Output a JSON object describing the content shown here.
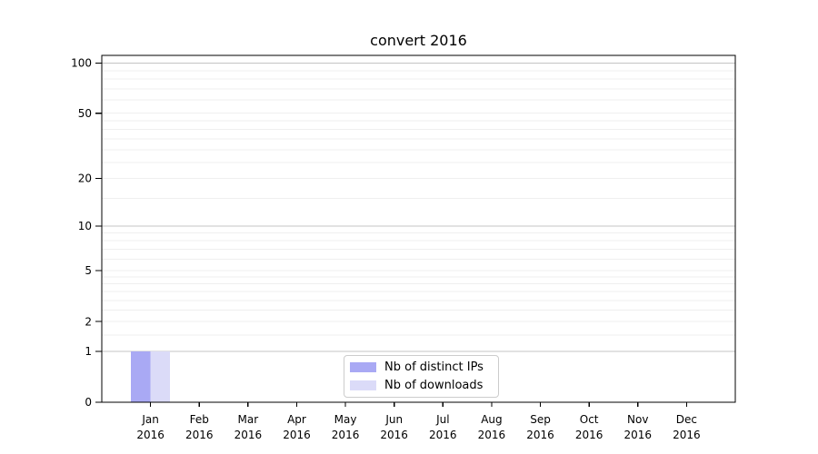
{
  "chart_data": {
    "type": "bar",
    "title": "convert 2016",
    "x_categories": [
      {
        "label": "Jan",
        "sublabel": "2016"
      },
      {
        "label": "Feb",
        "sublabel": "2016"
      },
      {
        "label": "Mar",
        "sublabel": "2016"
      },
      {
        "label": "Apr",
        "sublabel": "2016"
      },
      {
        "label": "May",
        "sublabel": "2016"
      },
      {
        "label": "Jun",
        "sublabel": "2016"
      },
      {
        "label": "Jul",
        "sublabel": "2016"
      },
      {
        "label": "Aug",
        "sublabel": "2016"
      },
      {
        "label": "Sep",
        "sublabel": "2016"
      },
      {
        "label": "Oct",
        "sublabel": "2016"
      },
      {
        "label": "Nov",
        "sublabel": "2016"
      },
      {
        "label": "Dec",
        "sublabel": "2016"
      }
    ],
    "series": [
      {
        "name": "Nb of distinct IPs",
        "color": "#a9a9f4",
        "values": [
          1,
          0,
          0,
          0,
          0,
          0,
          0,
          0,
          0,
          0,
          0,
          0
        ]
      },
      {
        "name": "Nb of downloads",
        "color": "#dbdbf8",
        "values": [
          1,
          0,
          0,
          0,
          0,
          0,
          0,
          0,
          0,
          0,
          0,
          0
        ]
      }
    ],
    "yscale": "log1p",
    "ylim": [
      0,
      111
    ],
    "yticks": [
      {
        "value": 0,
        "label": "0"
      },
      {
        "value": 1,
        "label": "1"
      },
      {
        "value": 2,
        "label": "2"
      },
      {
        "value": 5,
        "label": "5"
      },
      {
        "value": 10,
        "label": "10"
      },
      {
        "value": 20,
        "label": "20"
      },
      {
        "value": 50,
        "label": "50"
      },
      {
        "value": 100,
        "label": "100"
      }
    ],
    "major_gridline_values": [
      1,
      10,
      100
    ],
    "minor_gridline_values": [
      1.5,
      2,
      2.5,
      3,
      3.5,
      4,
      4.5,
      5,
      6,
      7,
      8,
      9,
      15,
      20,
      25,
      30,
      35,
      40,
      45,
      50,
      60,
      70,
      80,
      90
    ],
    "grid": "horizontal",
    "legend_position": "lower center",
    "colors": {
      "major_grid": "#c4c4c4",
      "minor_grid": "#efefef",
      "axis": "#000000"
    }
  }
}
